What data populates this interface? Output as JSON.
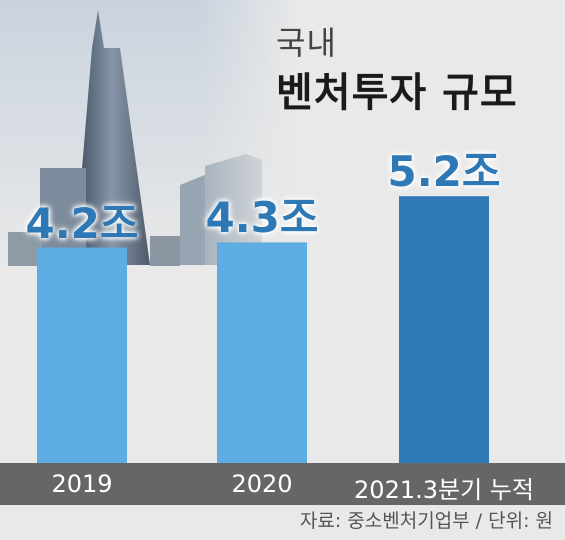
{
  "header": {
    "subtitle": "국내",
    "title": "벤처투자 규모"
  },
  "footer": {
    "source": "자료: 중소벤처기업부 / 단위: 원"
  },
  "colors": {
    "background": "#e9e9e9",
    "bar_light": "#5dade2",
    "bar_dark": "#2e78b6",
    "axis_band": "#666666"
  },
  "chart_data": {
    "type": "bar",
    "categories": [
      "2019",
      "2020",
      "2021.3분기 누적"
    ],
    "values": [
      4.2,
      4.3,
      5.2
    ],
    "value_labels": [
      "4.2조",
      "4.3조",
      "5.2조"
    ],
    "bar_colors": [
      "#5dade2",
      "#5dade2",
      "#2e78b6"
    ],
    "label_colors": [
      "#2e78b6",
      "#2e78b6",
      "#2e78b6"
    ],
    "title": "벤처투자 규모",
    "xlabel": "",
    "ylabel": "",
    "grid": false,
    "legend": "none"
  }
}
